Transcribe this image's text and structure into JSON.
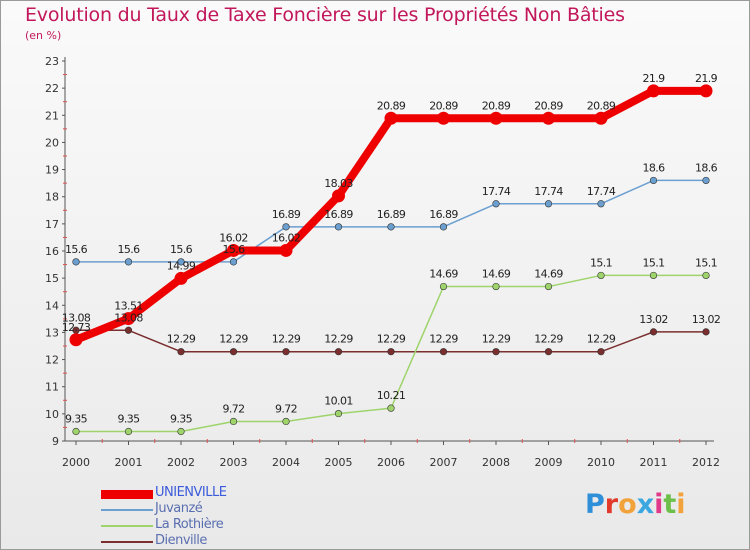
{
  "header": {
    "title": "Evolution du Taux de Taxe Foncière sur les Propriétés Non Bâties",
    "unit": "(en %)"
  },
  "chart_data": {
    "type": "line",
    "x": [
      "2000",
      "2001",
      "2002",
      "2003",
      "2004",
      "2005",
      "2006",
      "2007",
      "2008",
      "2009",
      "2010",
      "2011",
      "2012"
    ],
    "ylim": [
      9,
      23
    ],
    "yticks": [
      9,
      10,
      11,
      12,
      13,
      14,
      15,
      16,
      17,
      18,
      19,
      20,
      21,
      22,
      23
    ],
    "grid": false,
    "legend_position": "bottom-left",
    "series": [
      {
        "name": "UNIENVILLE",
        "color": "#ee0000",
        "values": [
          12.73,
          13.51,
          14.99,
          16.02,
          16.02,
          18.03,
          20.89,
          20.89,
          20.89,
          20.89,
          20.89,
          21.9,
          21.9
        ],
        "labels": [
          "12.73",
          "13.51",
          "14.99",
          "16.02",
          "16.02",
          "18.03",
          "20.89",
          "20.89",
          "20.89",
          "20.89",
          "20.89",
          "21.9",
          "21.9"
        ]
      },
      {
        "name": "Juvanzé",
        "color": "#6b9fd0",
        "values": [
          15.6,
          15.6,
          15.6,
          15.6,
          16.89,
          16.89,
          16.89,
          16.89,
          17.74,
          17.74,
          17.74,
          18.6,
          18.6
        ],
        "labels": [
          "15.6",
          "15.6",
          "15.6",
          "15.6",
          "16.89",
          "16.89",
          "16.89",
          "16.89",
          "17.74",
          "17.74",
          "17.74",
          "18.6",
          "18.6"
        ]
      },
      {
        "name": "La Rothière",
        "color": "#9ed46b",
        "values": [
          9.35,
          9.35,
          9.35,
          9.72,
          9.72,
          10.01,
          10.21,
          14.69,
          14.69,
          14.69,
          15.1,
          15.1,
          15.1
        ],
        "labels": [
          "9.35",
          "9.35",
          "9.35",
          "9.72",
          "9.72",
          "10.01",
          "10.21",
          "14.69",
          "14.69",
          "14.69",
          "15.1",
          "15.1",
          "15.1"
        ]
      },
      {
        "name": "Dienville",
        "color": "#7a2e2e",
        "values": [
          13.08,
          13.08,
          12.29,
          12.29,
          12.29,
          12.29,
          12.29,
          12.29,
          12.29,
          12.29,
          12.29,
          13.02,
          13.02
        ],
        "labels": [
          "13.08",
          "13.08",
          "12.29",
          "12.29",
          "12.29",
          "12.29",
          "12.29",
          "12.29",
          "12.29",
          "12.29",
          "12.29",
          "13.02",
          "13.02"
        ]
      }
    ]
  },
  "logo": {
    "letters": [
      "P",
      "r",
      "o",
      "x",
      "i",
      "t",
      "i"
    ],
    "colors": [
      "#2f8fd8",
      "#e23a2a",
      "#f2a23a",
      "#3aa7e0",
      "#e23a8a",
      "#6cc04a",
      "#f2a23a"
    ]
  }
}
